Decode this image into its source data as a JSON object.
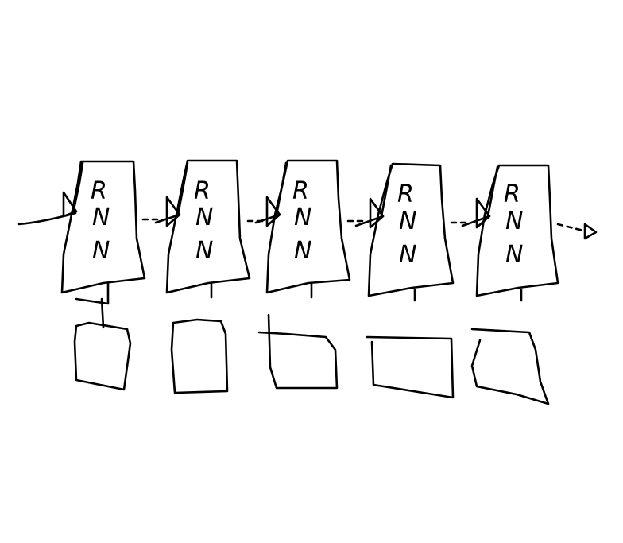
{
  "diagram": {
    "colors": {
      "ink": "#000000",
      "background": "#ffffff"
    },
    "cells": [
      {
        "letters": [
          "R",
          "N",
          "N"
        ]
      },
      {
        "letters": [
          "R",
          "N",
          "N"
        ]
      },
      {
        "letters": [
          "R",
          "N",
          "N"
        ]
      },
      {
        "letters": [
          "R",
          "N",
          "N"
        ]
      },
      {
        "letters": [
          "R",
          "N",
          "N"
        ]
      }
    ],
    "output_boxes": 5,
    "icons": {
      "input_arrow": "arrow-icon",
      "output_arrow": "arrow-icon"
    }
  }
}
